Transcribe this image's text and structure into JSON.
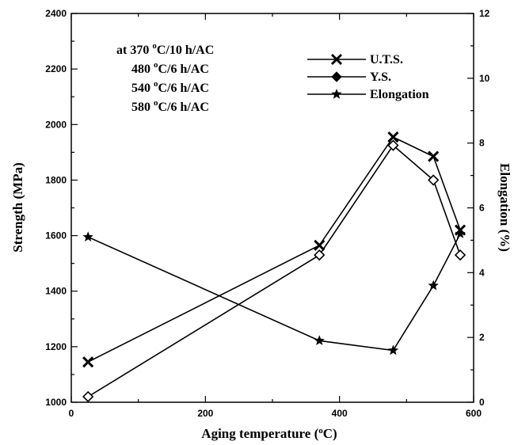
{
  "chart_data": {
    "type": "line",
    "xlabel": "Aging temperature (",
    "xlabel_sup": "o",
    "xlabel_end": "C)",
    "ylabel": "Strength (MPa)",
    "y2label": "Elongation (%)",
    "xlim": [
      0,
      600
    ],
    "ylim": [
      1000,
      2400
    ],
    "y2lim": [
      0,
      12
    ],
    "x_ticks": [
      0,
      200,
      400,
      600
    ],
    "y_ticks": [
      1000,
      1200,
      1400,
      1600,
      1800,
      2000,
      2200,
      2400
    ],
    "y2_ticks": [
      0,
      2,
      4,
      6,
      8,
      10,
      12
    ],
    "grid": false,
    "legend_position": "top-right",
    "annotation": [
      {
        "prefix": "at 370 ",
        "sup": "o",
        "suffix": "C/10 h/AC"
      },
      {
        "prefix": "480 ",
        "sup": "o",
        "suffix": "C/6 h/AC"
      },
      {
        "prefix": "540 ",
        "sup": "o",
        "suffix": "C/6 h/AC"
      },
      {
        "prefix": "580 ",
        "sup": "o",
        "suffix": "C/6 h/AC"
      }
    ],
    "series": [
      {
        "name": "U.T.S.",
        "axis": "left",
        "marker": "x",
        "x": [
          25,
          370,
          480,
          540,
          580
        ],
        "y": [
          1145,
          1565,
          1955,
          1885,
          1620
        ]
      },
      {
        "name": "Y.S.",
        "axis": "left",
        "marker": "diamond",
        "x": [
          25,
          370,
          480,
          540,
          580
        ],
        "y": [
          1020,
          1530,
          1925,
          1800,
          1530
        ]
      },
      {
        "name": "Elongation",
        "axis": "right",
        "marker": "star",
        "x": [
          25,
          370,
          480,
          540,
          580
        ],
        "y": [
          5.1,
          1.9,
          1.6,
          3.6,
          5.2
        ]
      }
    ]
  }
}
